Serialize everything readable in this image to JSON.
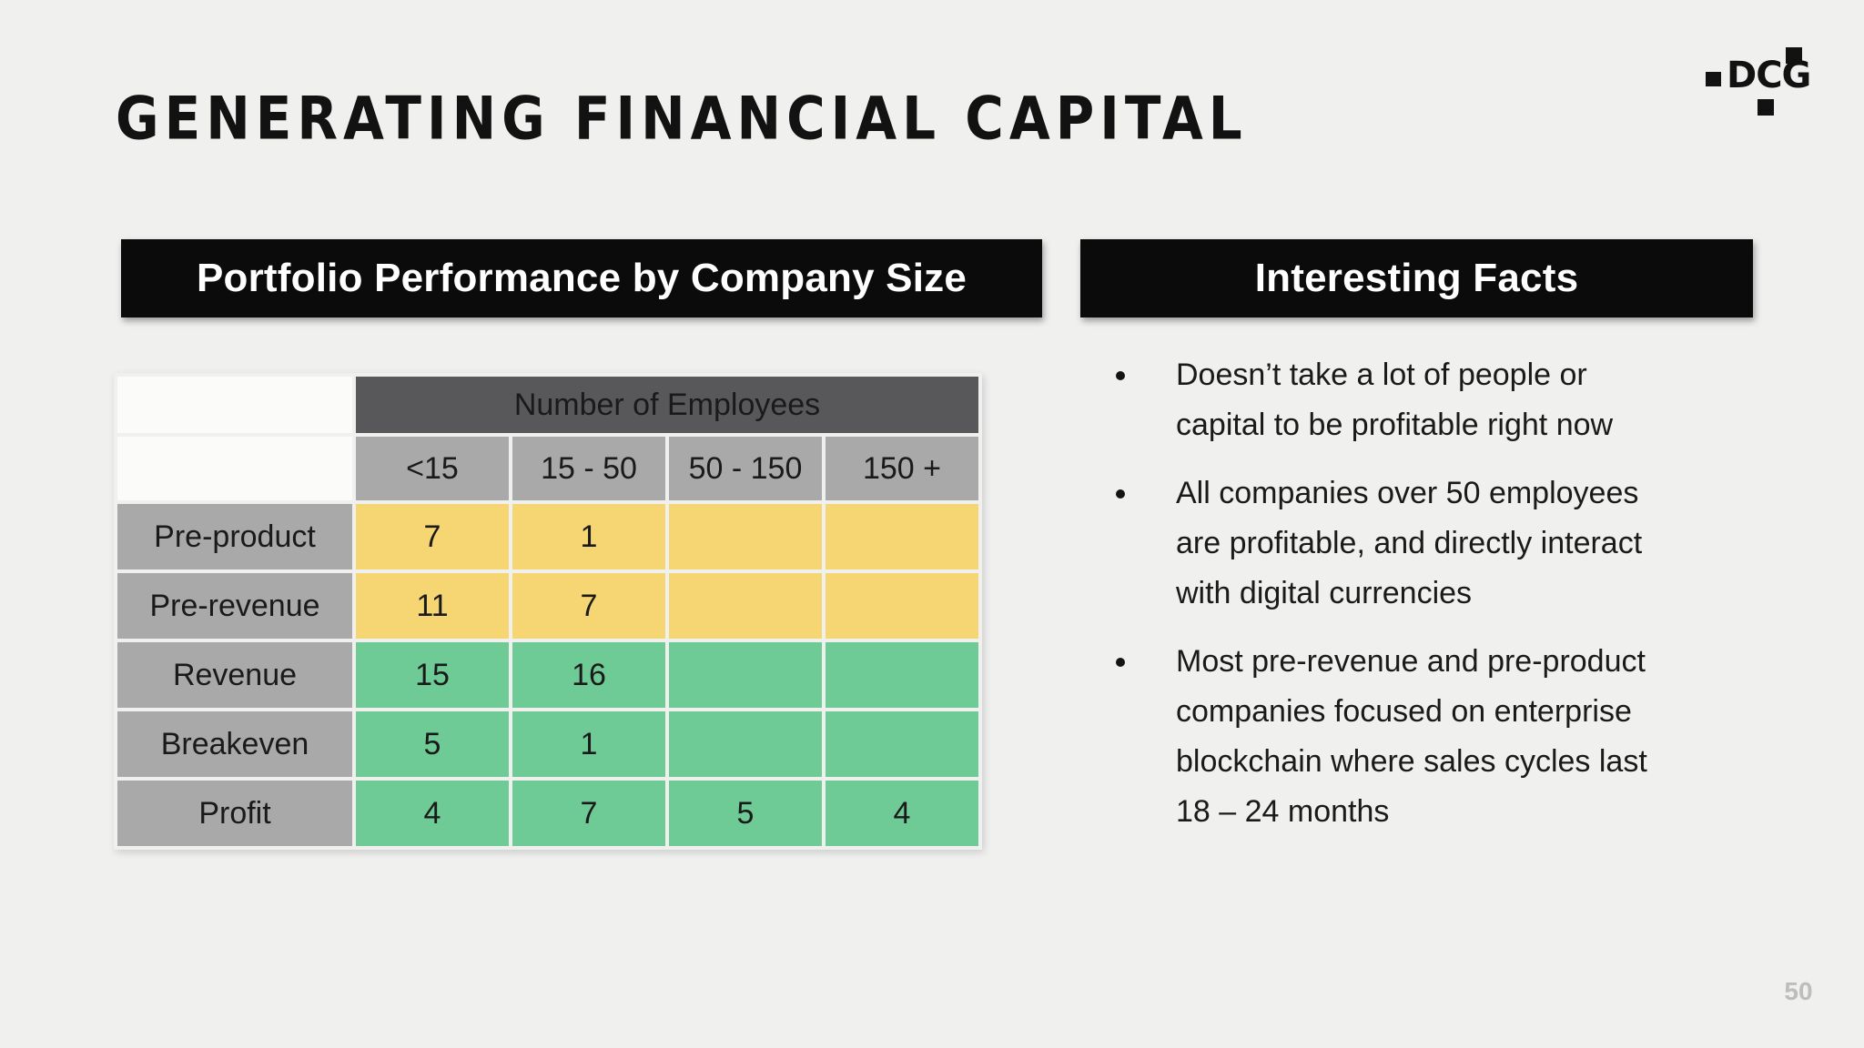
{
  "slide": {
    "title": "GENERATING FINANCIAL CAPITAL",
    "page_number": "50"
  },
  "logo": {
    "text": "DCG"
  },
  "portfolio": {
    "header": "Portfolio Performance by Company Size",
    "table": {
      "col_group_header": "Number of Employees",
      "col_headers": [
        "<15",
        "15 - 50",
        "50 - 150",
        "150 +"
      ],
      "rows": [
        {
          "label": "Pre-product",
          "status": "yellow",
          "values": [
            "7",
            "1",
            "",
            ""
          ]
        },
        {
          "label": "Pre-revenue",
          "status": "yellow",
          "values": [
            "11",
            "7",
            "",
            ""
          ]
        },
        {
          "label": "Revenue",
          "status": "green",
          "values": [
            "15",
            "16",
            "",
            ""
          ]
        },
        {
          "label": "Breakeven",
          "status": "green",
          "values": [
            "5",
            "1",
            "",
            ""
          ]
        },
        {
          "label": "Profit",
          "status": "green",
          "values": [
            "4",
            "7",
            "5",
            "4"
          ]
        }
      ]
    }
  },
  "facts": {
    "header": "Interesting Facts",
    "bullets": [
      {
        "lines": [
          "Doesn’t take a lot of people or",
          "capital to be profitable right now"
        ]
      },
      {
        "lines": [
          "All companies over 50 employees",
          "are profitable, and directly interact",
          "with digital currencies"
        ]
      },
      {
        "lines": [
          "Most pre-revenue and pre-product",
          "companies focused on enterprise",
          "blockchain where sales cycles last",
          "18 – 24 months"
        ]
      }
    ]
  },
  "colors": {
    "background": "#f0f0ef",
    "bar_black": "#0b0b0b",
    "table_group_header": "#58585a",
    "table_gray": "#a9a9a9",
    "cell_yellow": "#f6d573",
    "cell_green": "#6fcb96",
    "page_number_gray": "#bdbdbd"
  }
}
